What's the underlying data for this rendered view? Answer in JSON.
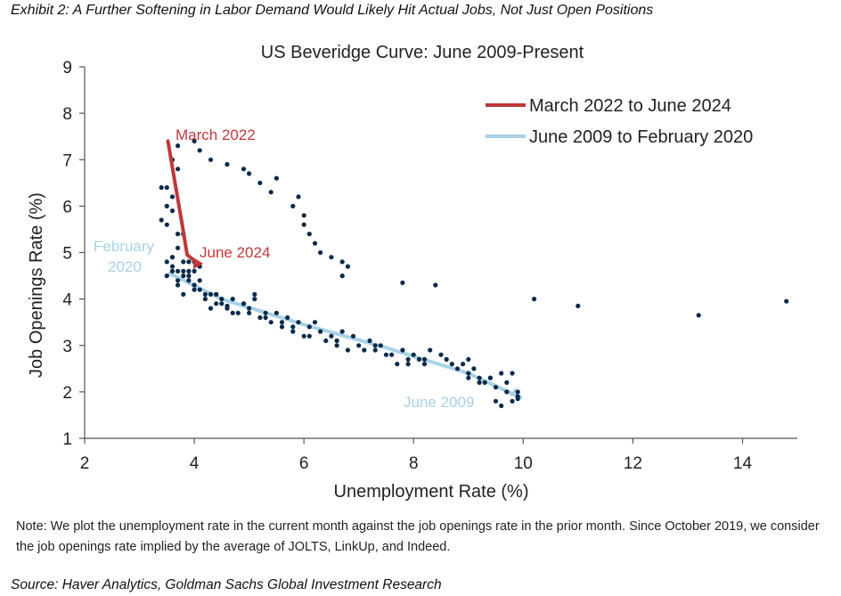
{
  "exhibit_title": "Exhibit 2: A Further Softening in Labor Demand Would Likely Hit Actual Jobs, Not Just Open Positions",
  "note": "Note: We plot the unemployment rate in the current month against the job openings rate in the prior month. Since October 2019, we consider the job openings rate implied by the average of JOLTS, LinkUp, and Indeed.",
  "source": "Source: Haver Analytics, Goldman Sachs Global Investment Research",
  "chart_data": {
    "type": "scatter",
    "title": "US Beveridge  Curve:  June  2009-Present",
    "xlabel": "Unemployment Rate (%)",
    "ylabel": "Job Openings Rate (%)",
    "xlim": [
      2,
      15
    ],
    "ylim": [
      1,
      9
    ],
    "xticks": [
      "2",
      "4",
      "6",
      "8",
      "10",
      "12",
      "14"
    ],
    "yticks": [
      "1",
      "2",
      "3",
      "4",
      "5",
      "6",
      "7",
      "8",
      "9"
    ],
    "grid": false,
    "legend_position": "top-right",
    "colors": {
      "points": "#0b2a4a",
      "recent_line": "#c0373a",
      "fit_line": "#a8d2e6",
      "axis": "#555555"
    },
    "legend": [
      {
        "label": "March 2022 to June 2024",
        "color": "#c0373a"
      },
      {
        "label": "June 2009 to February 2020",
        "color": "#a8d2e6"
      }
    ],
    "annotations": [
      {
        "text": "March 2022",
        "color": "#c0373a"
      },
      {
        "text": "June 2024",
        "color": "#c0373a"
      },
      {
        "text": "February",
        "color": "#a8d2e6"
      },
      {
        "text": "2020",
        "color": "#a8d2e6"
      },
      {
        "text": "June 2009",
        "color": "#a8d2e6"
      }
    ],
    "series": [
      {
        "name": "March 2022 to June 2024",
        "style": "line",
        "x": [
          3.52,
          3.62,
          3.78,
          3.87,
          4.05
        ],
        "y": [
          7.4,
          6.7,
          5.6,
          4.95,
          4.78
        ]
      },
      {
        "name": "June 2009 to February 2020",
        "style": "line",
        "x": [
          3.55,
          4.5,
          6.0,
          7.5,
          9.0,
          9.95
        ],
        "y": [
          4.55,
          4.0,
          3.45,
          2.95,
          2.4,
          1.88
        ]
      },
      {
        "name": "",
        "style": "markers",
        "x": [
          9.5,
          9.6,
          9.7,
          9.8,
          9.9,
          9.8,
          9.9,
          9.6,
          9.5,
          9.4,
          9.3,
          9.2,
          9.1,
          9.0,
          9.0,
          8.9,
          8.8,
          8.6,
          8.5,
          8.3,
          8.2,
          8.1,
          8.0,
          7.9,
          7.8,
          7.7,
          7.5,
          7.4,
          7.3,
          7.2,
          7.0,
          6.9,
          6.7,
          6.6,
          6.5,
          6.3,
          6.2,
          6.1,
          6.0,
          5.9,
          5.8,
          5.7,
          5.6,
          5.5,
          5.4,
          5.3,
          5.2,
          5.1,
          5.0,
          4.9,
          4.8,
          4.7,
          4.6,
          4.5,
          4.4,
          4.3,
          4.2,
          4.1,
          4.0,
          3.9,
          3.8,
          3.7,
          3.6,
          3.5,
          3.5,
          3.6,
          3.7,
          3.8,
          4.0,
          4.1,
          4.3,
          4.6,
          4.9,
          5.0,
          5.2,
          5.4,
          5.5,
          5.8,
          5.9,
          6.0,
          6.0,
          6.1,
          6.2,
          6.3,
          6.5,
          6.7,
          6.8,
          6.7,
          7.8,
          8.4,
          10.2,
          11.0,
          13.2,
          14.8,
          3.4,
          3.5,
          3.5,
          3.6,
          3.6,
          3.7,
          3.7,
          3.8,
          3.4,
          3.5,
          3.6,
          3.7,
          3.8,
          3.9,
          4.0,
          4.1,
          3.6,
          3.7,
          3.6,
          3.8,
          3.9,
          4.0,
          3.9,
          4.0,
          3.7,
          3.8,
          4.1,
          4.4,
          4.2,
          4.5,
          4.3,
          4.7,
          4.6,
          4.9,
          5.0,
          5.1,
          5.3,
          5.6,
          5.8,
          6.1,
          6.4,
          6.6,
          6.8,
          7.1,
          7.3,
          7.6,
          7.9,
          8.2,
          8.7,
          9.0,
          9.2,
          9.4,
          9.7,
          9.9
        ],
        "y": [
          1.8,
          1.7,
          2.2,
          1.8,
          1.85,
          2.4,
          2.0,
          2.4,
          2.1,
          2.3,
          2.2,
          2.3,
          2.5,
          2.7,
          2.4,
          2.6,
          2.5,
          2.7,
          2.8,
          2.9,
          2.6,
          2.7,
          2.8,
          2.7,
          2.9,
          2.6,
          2.8,
          3.0,
          2.9,
          3.1,
          3.0,
          3.2,
          3.3,
          3.1,
          3.2,
          3.3,
          3.5,
          3.4,
          3.2,
          3.5,
          3.3,
          3.6,
          3.4,
          3.7,
          3.5,
          3.7,
          3.6,
          4.1,
          3.8,
          3.9,
          3.7,
          4.0,
          3.8,
          4.0,
          3.9,
          4.1,
          4.1,
          4.2,
          4.3,
          4.4,
          4.5,
          4.6,
          4.7,
          4.5,
          4.8,
          4.9,
          5.1,
          5.4,
          7.4,
          7.2,
          7.0,
          6.9,
          6.8,
          6.7,
          6.5,
          6.3,
          6.6,
          6.0,
          6.2,
          5.8,
          5.6,
          5.4,
          5.2,
          5.0,
          4.9,
          4.8,
          4.7,
          4.5,
          4.35,
          4.3,
          4.0,
          3.85,
          3.65,
          3.95,
          5.7,
          6.0,
          6.4,
          6.2,
          7.0,
          7.3,
          6.8,
          5.4,
          6.4,
          5.6,
          5.9,
          5.4,
          4.8,
          4.6,
          4.8,
          4.4,
          4.6,
          4.4,
          4.9,
          4.6,
          4.5,
          4.2,
          4.8,
          4.6,
          4.3,
          4.1,
          4.7,
          4.1,
          4.0,
          3.9,
          3.8,
          3.7,
          3.85,
          3.9,
          3.7,
          4.0,
          3.6,
          3.5,
          3.4,
          3.2,
          3.1,
          3.0,
          2.9,
          2.9,
          3.0,
          2.8,
          2.6,
          2.7,
          2.6,
          2.3,
          2.2,
          2.3,
          2.0,
          1.9
        ]
      }
    ]
  }
}
